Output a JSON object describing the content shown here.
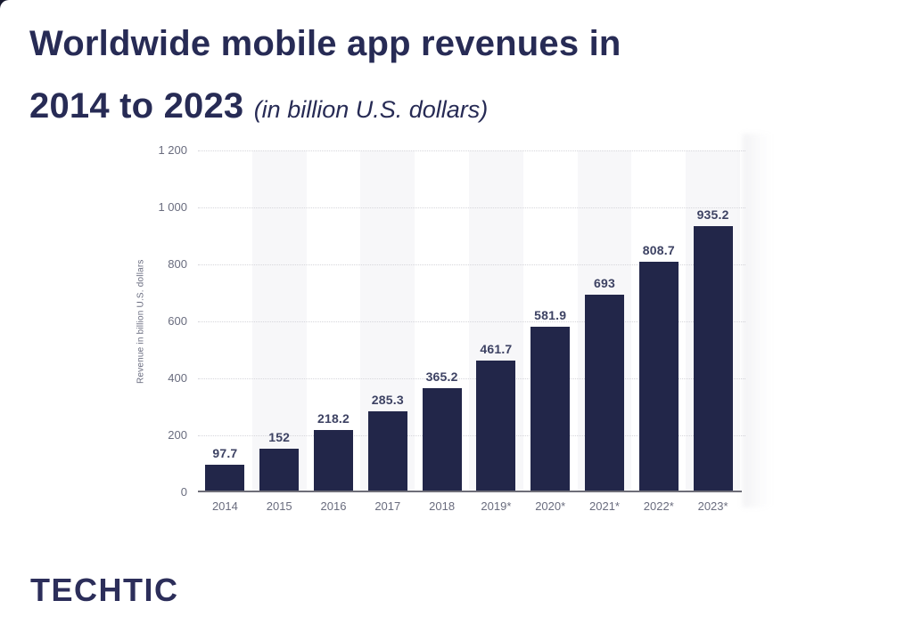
{
  "header": {
    "title_line1": "Worldwide mobile app revenues in",
    "title_line2": "2014 to 2023",
    "title_unit": "(in billion U.S. dollars)"
  },
  "footer": {
    "logo_text": "TECHTIC"
  },
  "chart_data": {
    "type": "bar",
    "title": "Worldwide mobile app revenues in 2014 to 2023",
    "subtitle": "(in billion U.S. dollars)",
    "categories": [
      "2014",
      "2015",
      "2016",
      "2017",
      "2018",
      "2019*",
      "2020*",
      "2021*",
      "2022*",
      "2023*"
    ],
    "values": [
      97.7,
      152,
      218.2,
      285.3,
      365.2,
      461.7,
      581.9,
      693,
      808.7,
      935.2
    ],
    "value_labels": [
      "97.7",
      "152",
      "218.2",
      "285.3",
      "365.2",
      "461.7",
      "581.9",
      "693",
      "808.7",
      "935.2"
    ],
    "xlabel": "",
    "ylabel": "Revenue in billion U.S. dollars",
    "ylim": [
      0,
      1200
    ],
    "yticks": [
      {
        "value": 1200,
        "label": "1 200"
      },
      {
        "value": 1000,
        "label": "1 000"
      },
      {
        "value": 800,
        "label": "800"
      },
      {
        "value": 600,
        "label": "600"
      },
      {
        "value": 400,
        "label": "400"
      },
      {
        "value": 200,
        "label": "200"
      },
      {
        "value": 0,
        "label": "0"
      }
    ],
    "grid": "horizontal dotted",
    "legend": "none",
    "colors": {
      "bar": "#222649",
      "value_label": "#3d4263",
      "axis_text": "#696c7e",
      "gridline": "#d6d6db",
      "column_band": "#f7f7f9",
      "baseline": "#6e6e78",
      "title_text": "#272b55",
      "logo_text": "#2c2e5a",
      "background": "#ffffff"
    }
  }
}
